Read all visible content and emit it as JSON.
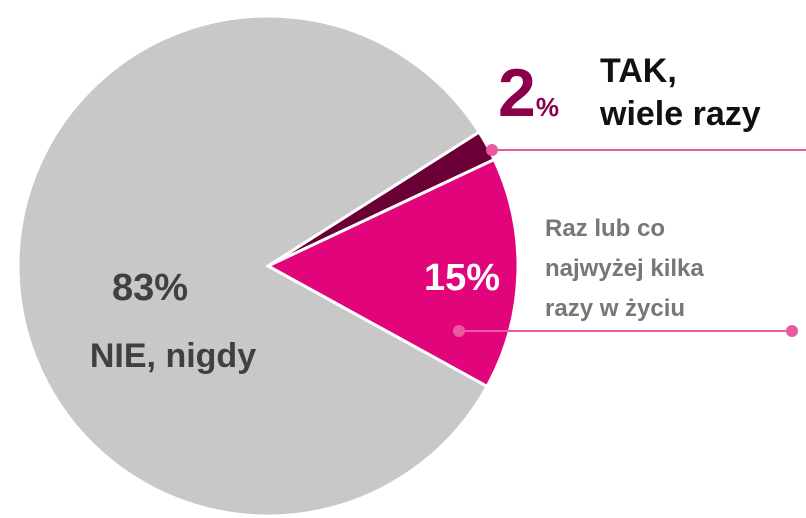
{
  "chart_data": {
    "type": "pie",
    "categories": [
      "TAK,\nwiele razy",
      "Raz lub co\nnajwyżej kilka\nrazy w życiu",
      "NIE, nigdy"
    ],
    "values": [
      2,
      15,
      83
    ],
    "value_labels": [
      "2%",
      "15%",
      "83%"
    ],
    "colors": [
      "#6b0036",
      "#e2047a",
      "#c8c8c8"
    ]
  }
}
